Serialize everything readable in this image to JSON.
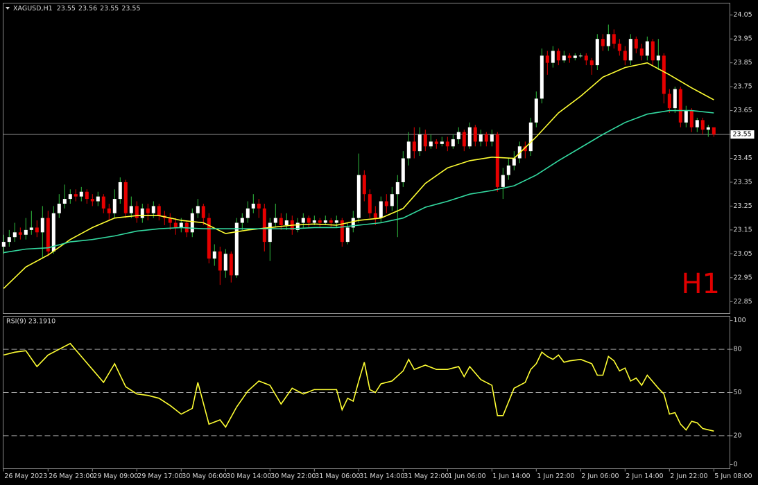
{
  "chart_data": {
    "type": "candlestick",
    "symbol": "XAGUSD,H1",
    "quote": [
      23.55,
      23.56,
      23.55,
      23.55
    ],
    "watermark": "H1",
    "open": [
      23.08,
      23.1,
      23.12,
      23.14,
      23.13,
      23.15,
      23.16,
      23.14,
      23.2,
      23.06,
      23.22,
      23.26,
      23.28,
      23.3,
      23.29,
      23.31,
      23.28,
      23.27,
      23.29,
      23.24,
      23.22,
      23.28,
      23.35,
      23.22,
      23.25,
      23.2,
      23.24,
      23.22,
      23.25,
      23.21,
      23.2,
      23.18,
      23.16,
      23.18,
      23.14,
      23.22,
      23.25,
      23.2,
      23.03,
      23.06,
      22.98,
      23.05,
      22.96,
      23.18,
      23.2,
      23.24,
      23.26,
      23.24,
      23.1,
      23.18,
      23.2,
      23.17,
      23.19,
      23.15,
      23.18,
      23.2,
      23.18,
      23.19,
      23.18,
      23.19,
      23.18,
      23.19,
      23.1,
      23.16,
      23.2,
      23.38,
      23.3,
      23.22,
      23.2,
      23.27,
      23.25,
      23.3,
      23.35,
      23.45,
      23.52,
      23.48,
      23.55,
      23.5,
      23.52,
      23.51,
      23.52,
      23.5,
      23.53,
      23.56,
      23.5,
      23.58,
      23.52,
      23.55,
      23.52,
      23.55,
      23.33,
      23.38,
      23.42,
      23.45,
      23.5,
      23.48,
      23.6,
      23.7,
      23.88,
      23.85,
      23.9,
      23.86,
      23.88,
      23.87,
      23.88,
      23.88,
      23.86,
      23.84,
      23.95,
      23.92,
      23.97,
      23.93,
      23.9,
      23.86,
      23.95,
      23.91,
      23.88,
      23.94,
      23.86,
      23.88,
      23.72,
      23.66,
      23.74,
      23.6,
      23.65,
      23.58,
      23.61,
      23.57,
      23.58
    ],
    "high": [
      23.13,
      23.15,
      23.18,
      23.16,
      23.2,
      23.23,
      23.19,
      23.25,
      23.23,
      23.25,
      23.3,
      23.34,
      23.32,
      23.32,
      23.33,
      23.32,
      23.3,
      23.31,
      23.3,
      23.26,
      23.32,
      23.37,
      23.36,
      23.29,
      23.27,
      23.26,
      23.26,
      23.27,
      23.26,
      23.23,
      23.22,
      23.2,
      23.2,
      23.19,
      23.24,
      23.28,
      23.26,
      23.22,
      23.09,
      23.08,
      23.07,
      23.06,
      23.2,
      23.22,
      23.27,
      23.3,
      23.28,
      23.26,
      23.2,
      23.26,
      23.22,
      23.22,
      23.21,
      23.2,
      23.22,
      23.21,
      23.21,
      23.2,
      23.21,
      23.2,
      23.21,
      23.2,
      23.18,
      23.23,
      23.47,
      23.4,
      23.32,
      23.25,
      23.29,
      23.3,
      23.33,
      23.38,
      23.48,
      23.56,
      23.58,
      23.58,
      23.57,
      23.55,
      23.53,
      23.54,
      23.54,
      23.55,
      23.58,
      23.57,
      23.6,
      23.59,
      23.57,
      23.56,
      23.57,
      23.56,
      23.41,
      23.45,
      23.48,
      23.52,
      23.52,
      23.62,
      23.73,
      23.91,
      23.9,
      23.92,
      23.91,
      23.9,
      23.89,
      23.89,
      23.89,
      23.89,
      23.87,
      23.97,
      23.97,
      24.01,
      23.99,
      23.95,
      23.92,
      23.97,
      23.96,
      23.93,
      23.96,
      23.95,
      23.95,
      23.89,
      23.74,
      23.75,
      23.75,
      23.67,
      23.66,
      23.62,
      23.62,
      23.59,
      23.57
    ],
    "low": [
      23.05,
      23.08,
      23.1,
      23.11,
      23.11,
      23.13,
      23.12,
      23.03,
      23.04,
      23.05,
      23.2,
      23.24,
      23.26,
      23.27,
      23.27,
      23.26,
      23.25,
      23.25,
      23.22,
      23.19,
      23.2,
      23.26,
      23.2,
      23.2,
      23.18,
      23.18,
      23.19,
      23.2,
      23.19,
      23.17,
      23.15,
      23.13,
      23.14,
      23.12,
      23.12,
      23.2,
      23.17,
      23.01,
      23.0,
      22.92,
      22.95,
      22.93,
      22.95,
      23.15,
      23.18,
      23.22,
      23.2,
      23.06,
      23.02,
      23.16,
      23.15,
      23.15,
      23.13,
      23.14,
      23.16,
      23.16,
      23.17,
      23.16,
      23.17,
      23.16,
      23.16,
      23.08,
      23.09,
      23.14,
      23.18,
      23.27,
      23.2,
      23.17,
      23.18,
      23.22,
      23.23,
      23.12,
      23.33,
      23.42,
      23.45,
      23.46,
      23.48,
      23.49,
      23.49,
      23.5,
      23.48,
      23.49,
      23.51,
      23.48,
      23.49,
      23.5,
      23.5,
      23.5,
      23.5,
      23.31,
      23.28,
      23.36,
      23.4,
      23.43,
      23.45,
      23.46,
      23.58,
      23.68,
      23.8,
      23.83,
      23.84,
      23.85,
      23.85,
      23.86,
      23.87,
      23.84,
      23.8,
      23.82,
      23.9,
      23.9,
      23.91,
      23.88,
      23.84,
      23.84,
      23.89,
      23.86,
      23.86,
      23.84,
      23.82,
      23.68,
      23.64,
      23.64,
      23.58,
      23.58,
      23.56,
      23.56,
      23.55,
      23.54,
      23.54
    ],
    "close": [
      23.1,
      23.12,
      23.14,
      23.13,
      23.15,
      23.16,
      23.14,
      23.2,
      23.06,
      23.22,
      23.26,
      23.28,
      23.3,
      23.29,
      23.31,
      23.28,
      23.27,
      23.29,
      23.24,
      23.22,
      23.28,
      23.35,
      23.22,
      23.25,
      23.2,
      23.24,
      23.22,
      23.25,
      23.21,
      23.2,
      23.18,
      23.16,
      23.18,
      23.14,
      23.22,
      23.25,
      23.2,
      23.03,
      23.06,
      22.98,
      23.05,
      22.96,
      23.18,
      23.2,
      23.24,
      23.26,
      23.24,
      23.1,
      23.18,
      23.2,
      23.17,
      23.19,
      23.15,
      23.18,
      23.2,
      23.18,
      23.19,
      23.18,
      23.19,
      23.18,
      23.19,
      23.1,
      23.16,
      23.2,
      23.38,
      23.3,
      23.22,
      23.2,
      23.27,
      23.25,
      23.3,
      23.35,
      23.45,
      23.52,
      23.48,
      23.55,
      23.5,
      23.52,
      23.51,
      23.52,
      23.5,
      23.53,
      23.56,
      23.5,
      23.58,
      23.52,
      23.55,
      23.52,
      23.55,
      23.33,
      23.38,
      23.42,
      23.45,
      23.5,
      23.48,
      23.6,
      23.7,
      23.88,
      23.85,
      23.9,
      23.86,
      23.88,
      23.87,
      23.88,
      23.88,
      23.86,
      23.84,
      23.95,
      23.92,
      23.97,
      23.93,
      23.9,
      23.86,
      23.95,
      23.91,
      23.88,
      23.94,
      23.86,
      23.88,
      23.72,
      23.66,
      23.74,
      23.6,
      23.65,
      23.58,
      23.61,
      23.57,
      23.58,
      23.55
    ],
    "up_color": "#ffffff",
    "down_color": "#e60000",
    "up_wick_color": "#2fbf3f",
    "overlays": [
      {
        "color": "#ffff33",
        "x": [
          0,
          4,
          8,
          12,
          16,
          20,
          24,
          28,
          32,
          36,
          40,
          44,
          48,
          52,
          56,
          60,
          64,
          68,
          72,
          76,
          80,
          84,
          88,
          92,
          96,
          100,
          104,
          108,
          112,
          116,
          120,
          124,
          128
        ],
        "values": [
          22.905,
          22.995,
          23.045,
          23.11,
          23.16,
          23.2,
          23.21,
          23.21,
          23.19,
          23.18,
          23.135,
          23.15,
          23.16,
          23.17,
          23.175,
          23.17,
          23.19,
          23.2,
          23.24,
          23.345,
          23.41,
          23.44,
          23.455,
          23.45,
          23.54,
          23.64,
          23.71,
          23.79,
          23.83,
          23.85,
          23.8,
          23.745,
          23.695
        ]
      },
      {
        "color": "#33d9a0",
        "x": [
          0,
          4,
          8,
          12,
          16,
          20,
          24,
          28,
          32,
          36,
          40,
          44,
          48,
          52,
          56,
          60,
          64,
          68,
          72,
          76,
          80,
          84,
          88,
          92,
          96,
          100,
          104,
          108,
          112,
          116,
          120,
          124,
          128
        ],
        "values": [
          23.055,
          23.07,
          23.075,
          23.1,
          23.11,
          23.125,
          23.145,
          23.155,
          23.16,
          23.155,
          23.155,
          23.155,
          23.155,
          23.155,
          23.16,
          23.16,
          23.17,
          23.18,
          23.2,
          23.245,
          23.27,
          23.3,
          23.315,
          23.335,
          23.38,
          23.44,
          23.495,
          23.55,
          23.6,
          23.635,
          23.65,
          23.65,
          23.64
        ]
      }
    ],
    "xlim": [
      -0.1,
      130.9
    ],
    "xticks": [
      {
        "value": 0,
        "label": "26 May 2023"
      },
      {
        "value": 8,
        "label": "26 May 23:00"
      },
      {
        "value": 16,
        "label": "29 May 09:00"
      },
      {
        "value": 24,
        "label": "29 May 17:00"
      },
      {
        "value": 32,
        "label": "30 May 06:00"
      },
      {
        "value": 40,
        "label": "30 May 14:00"
      },
      {
        "value": 48,
        "label": "30 May 22:00"
      },
      {
        "value": 56,
        "label": "31 May 06:00"
      },
      {
        "value": 64,
        "label": "31 May 14:00"
      },
      {
        "value": 72,
        "label": "31 May 22:00"
      },
      {
        "value": 80,
        "label": "1 Jun 06:00"
      },
      {
        "value": 88,
        "label": "1 Jun 14:00"
      },
      {
        "value": 96,
        "label": "1 Jun 22:00"
      },
      {
        "value": 104,
        "label": "2 Jun 06:00"
      },
      {
        "value": 112,
        "label": "2 Jun 14:00"
      },
      {
        "value": 120,
        "label": "2 Jun 22:00"
      },
      {
        "value": 128,
        "label": "5 Jun 08:00"
      }
    ],
    "ylim": [
      22.8,
      24.1
    ],
    "yticks": [
      24.05,
      23.95,
      23.85,
      23.75,
      23.65,
      23.55,
      23.45,
      23.35,
      23.25,
      23.15,
      23.05,
      22.95,
      22.85
    ],
    "current_price": 23.55,
    "rsi": {
      "label": "RSI(9) 23.1910",
      "color": "#ffff33",
      "x": [
        0,
        2,
        4,
        6,
        8,
        10,
        12,
        14,
        16,
        18,
        20,
        22,
        24,
        26,
        28,
        30,
        32,
        34,
        35,
        37,
        39,
        40,
        42,
        44,
        46,
        48,
        50,
        52,
        54,
        56,
        58,
        60,
        61,
        62,
        63,
        64,
        65,
        66,
        67,
        68,
        70,
        72,
        73,
        74,
        76,
        78,
        80,
        82,
        83,
        84,
        86,
        88,
        89,
        90,
        92,
        94,
        95,
        96,
        97,
        98,
        99,
        100,
        101,
        102,
        104,
        106,
        107,
        108,
        109,
        110,
        111,
        112,
        113,
        114,
        115,
        116,
        118,
        119,
        120,
        121,
        122,
        123,
        124,
        125,
        126,
        128
      ],
      "values": [
        76,
        78,
        79,
        68,
        76,
        80,
        84,
        75,
        66,
        57,
        70,
        54,
        49,
        48,
        46,
        41,
        35,
        39,
        57,
        28,
        31,
        26,
        40,
        51,
        58,
        55,
        42,
        53,
        49,
        52,
        52,
        52,
        38,
        46,
        44,
        58,
        71,
        52,
        50,
        56,
        58,
        65,
        73,
        66,
        69,
        66,
        66,
        68,
        61,
        68,
        59,
        55,
        34,
        34,
        53,
        57,
        66,
        70,
        78,
        75,
        73,
        76,
        71,
        72,
        73,
        70,
        62,
        62,
        75,
        72,
        65,
        67,
        58,
        60,
        55,
        62,
        53,
        49,
        35,
        36,
        28,
        24,
        30,
        29,
        25,
        23.191
      ],
      "ylim": [
        -2.9,
        102.9
      ],
      "yticks": [
        100,
        80,
        50,
        20,
        0
      ],
      "levels": [
        80,
        50,
        20
      ]
    }
  }
}
